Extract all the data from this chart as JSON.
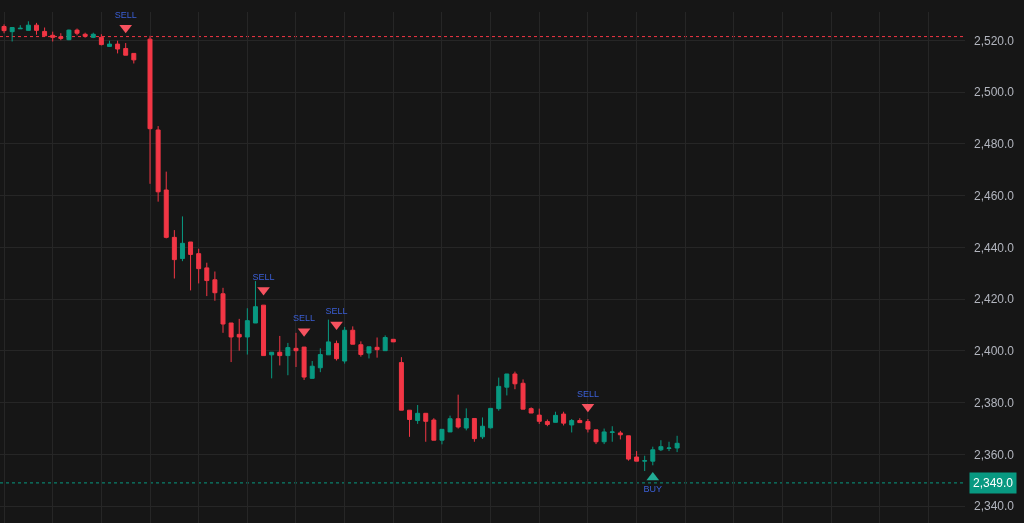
{
  "chart_data": {
    "type": "candlestick",
    "categories": [
      null,
      null,
      null,
      null,
      null,
      null,
      null,
      null,
      null,
      null,
      null,
      null,
      null,
      null,
      null,
      null,
      null,
      null,
      null,
      null,
      null,
      null,
      null,
      null,
      null,
      null,
      null,
      null,
      null,
      null,
      null,
      null,
      null,
      null,
      null,
      null,
      null,
      null,
      null,
      null,
      null,
      null,
      null,
      null,
      null,
      null,
      null,
      null,
      null,
      null,
      null,
      null,
      null,
      null,
      null,
      null,
      null,
      null,
      null,
      null,
      null,
      null,
      null,
      null,
      null,
      null,
      null,
      null,
      null,
      null,
      null,
      null,
      null,
      null,
      null,
      null,
      null,
      null,
      null,
      null,
      null,
      null,
      null,
      null,
      null,
      null,
      null,
      null,
      null,
      null,
      null,
      null,
      null,
      null,
      null,
      null,
      null,
      null,
      null,
      null,
      null,
      null,
      null,
      null,
      null,
      null,
      null,
      null,
      null,
      null,
      null,
      null,
      null,
      null,
      null,
      null,
      null,
      null,
      null
    ],
    "ohlc": [
      [
        2525.4,
        2526.2,
        2522.8,
        2523.8
      ],
      [
        2523.4,
        2525.0,
        2519.6,
        2525.0
      ],
      [
        2524.5,
        2525.9,
        2524.5,
        2524.7
      ],
      [
        2523.9,
        2527.4,
        2523.9,
        2525.9
      ],
      [
        2525.9,
        2526.8,
        2522.2,
        2523.9
      ],
      [
        2523.5,
        2525.0,
        2521.4,
        2521.8
      ],
      [
        2522.0,
        2523.4,
        2519.6,
        2521.2
      ],
      [
        2521.4,
        2522.8,
        2520.1,
        2520.8
      ],
      [
        2520.3,
        2524.2,
        2520.1,
        2524.0
      ],
      [
        2524.0,
        2524.6,
        2522.0,
        2522.8
      ],
      [
        2522.4,
        2523.0,
        2521.1,
        2521.6
      ],
      [
        2521.2,
        2523.0,
        2520.9,
        2522.4
      ],
      [
        2521.2,
        2522.4,
        2518.1,
        2518.4
      ],
      [
        2517.7,
        2519.9,
        2517.7,
        2518.6
      ],
      [
        2518.6,
        2519.9,
        2515.0,
        2516.7
      ],
      [
        2516.9,
        2519.0,
        2514.3,
        2514.3
      ],
      [
        2515.0,
        2515.0,
        2511.1,
        2512.5
      ],
      null,
      [
        2520.5,
        2521.8,
        2464.6,
        2485.9
      ],
      [
        2485.4,
        2486.9,
        2457.7,
        2461.5
      ],
      [
        2462.2,
        2469.3,
        2443.5,
        2443.9
      ],
      [
        2443.9,
        2446.7,
        2428.0,
        2435.3
      ],
      [
        2435.7,
        2452.0,
        2434.7,
        2441.6
      ],
      [
        2442.1,
        2442.1,
        2423.4,
        2437.3
      ],
      [
        2437.6,
        2439.5,
        2426.1,
        2431.8
      ],
      [
        2432.1,
        2434.1,
        2421.2,
        2427.2
      ],
      [
        2427.5,
        2430.7,
        2419.4,
        2422.5
      ],
      [
        2422.1,
        2424.4,
        2407.0,
        2410.4
      ],
      [
        2410.8,
        2410.8,
        2395.7,
        2405.4
      ],
      [
        2406.4,
        2412.4,
        2400.1,
        2405.4
      ],
      [
        2405.4,
        2416.5,
        2398.6,
        2411.7
      ],
      [
        2410.8,
        2427.0,
        2410.8,
        2417.1
      ],
      [
        2417.7,
        2417.7,
        2398.2,
        2398.2
      ],
      [
        2398.5,
        2399.5,
        2389.4,
        2399.5
      ],
      [
        2399.5,
        2405.8,
        2394.4,
        2398.2
      ],
      [
        2398.2,
        2403.1,
        2390.6,
        2401.3
      ],
      [
        2401.0,
        2407.0,
        2393.8,
        2400.1
      ],
      [
        2401.5,
        2401.5,
        2388.8,
        2389.9
      ],
      [
        2389.4,
        2396.1,
        2389.4,
        2394.1
      ],
      [
        2393.5,
        2401.0,
        2391.8,
        2398.6
      ],
      [
        2398.5,
        2412.1,
        2398.5,
        2403.5
      ],
      [
        2402.9,
        2404.0,
        2396.3,
        2397.0
      ],
      [
        2396.1,
        2409.3,
        2395.1,
        2408.0
      ],
      [
        2408.0,
        2409.5,
        2402.6,
        2402.6
      ],
      [
        2402.4,
        2403.7,
        2397.8,
        2398.6
      ],
      [
        2399.2,
        2401.6,
        2397.1,
        2401.6
      ],
      [
        2401.4,
        2405.2,
        2397.4,
        2400.5
      ],
      [
        2400.1,
        2406.0,
        2400.1,
        2405.2
      ],
      [
        2404.5,
        2404.5,
        2403.5,
        2403.5
      ],
      [
        2395.5,
        2397.6,
        2377.1,
        2377.1
      ],
      [
        2377.1,
        2377.1,
        2366.8,
        2373.5
      ],
      [
        2373.1,
        2379.1,
        2371.8,
        2375.9
      ],
      [
        2375.9,
        2375.9,
        2364.9,
        2372.8
      ],
      [
        2373.3,
        2374.0,
        2365.5,
        2365.5
      ],
      [
        2365.5,
        2369.7,
        2363.9,
        2369.7
      ],
      [
        2368.7,
        2375.0,
        2368.7,
        2373.8
      ],
      [
        2373.8,
        2383.1,
        2370.0,
        2370.6
      ],
      [
        2370.2,
        2377.8,
        2369.3,
        2373.9
      ],
      [
        2373.9,
        2373.9,
        2364.9,
        2366.1
      ],
      [
        2366.8,
        2374.3,
        2366.0,
        2370.9
      ],
      [
        2370.3,
        2377.8,
        2370.0,
        2377.8
      ],
      [
        2377.7,
        2389.7,
        2376.9,
        2386.3
      ],
      [
        2386.0,
        2391.1,
        2382.8,
        2391.1
      ],
      [
        2391.1,
        2392.0,
        2385.2,
        2387.3
      ],
      [
        2387.5,
        2389.0,
        2377.5,
        2377.5
      ],
      [
        2377.7,
        2378.2,
        2376.0,
        2376.0
      ],
      [
        2375.2,
        2377.7,
        2371.8,
        2372.8
      ],
      [
        2372.7,
        2373.5,
        2370.9,
        2371.6
      ],
      [
        2372.4,
        2376.5,
        2372.4,
        2375.1
      ],
      [
        2375.6,
        2376.5,
        2371.2,
        2372.1
      ],
      [
        2371.4,
        2373.7,
        2368.5,
        2373.1
      ],
      [
        2373.1,
        2374.0,
        2372.3,
        2372.3
      ],
      [
        2372.7,
        2373.7,
        2368.5,
        2369.8
      ],
      [
        2369.5,
        2369.5,
        2364.0,
        2364.9
      ],
      [
        2364.9,
        2370.0,
        2364.0,
        2368.7
      ],
      [
        2368.5,
        2370.9,
        2364.9,
        2368.7
      ],
      [
        2368.3,
        2369.1,
        2365.8,
        2367.6
      ],
      [
        2367.2,
        2367.2,
        2357.6,
        2358.2
      ],
      [
        2359.0,
        2361.3,
        2357.4,
        2357.4
      ],
      [
        2357.4,
        2359.5,
        2353.6,
        2357.6
      ],
      [
        2357.4,
        2363.0,
        2355.8,
        2361.8
      ],
      [
        2361.8,
        2365.5,
        2361.3,
        2363.0
      ],
      [
        2362.3,
        2364.9,
        2361.3,
        2362.5
      ],
      [
        2362.5,
        2367.2,
        2360.9,
        2364.3
      ],
      null,
      null,
      null,
      null,
      null,
      null,
      null,
      null,
      null,
      null,
      null,
      null,
      null,
      null,
      null,
      null,
      null,
      null,
      null,
      null,
      null,
      null,
      null,
      null,
      null,
      null,
      null,
      null,
      null,
      null,
      null,
      null,
      null,
      null,
      null
    ],
    "colors": [
      "#f23645",
      "#089981",
      "#089981",
      "#089981",
      "#f23645",
      "#f23645",
      "#f23645",
      "#f23645",
      "#089981",
      "#f23645",
      "#f23645",
      "#089981",
      "#f23645",
      "#089981",
      "#f23645",
      "#f23645",
      "#f23645",
      null,
      "#f23645",
      "#f23645",
      "#f23645",
      "#f23645",
      "#089981",
      "#f23645",
      "#f23645",
      "#f23645",
      "#f23645",
      "#f23645",
      "#f23645",
      "#f23645",
      "#089981",
      "#089981",
      "#f23645",
      "#089981",
      "#f23645",
      "#089981",
      "#f23645",
      "#f23645",
      "#089981",
      "#089981",
      "#089981",
      "#f23645",
      "#089981",
      "#f23645",
      "#f23645",
      "#089981",
      "#f23645",
      "#089981",
      "#f23645",
      "#f23645",
      "#f23645",
      "#089981",
      "#f23645",
      "#f23645",
      "#089981",
      "#089981",
      "#f23645",
      "#089981",
      "#f23645",
      "#089981",
      "#089981",
      "#089981",
      "#089981",
      "#f23645",
      "#f23645",
      "#f23645",
      "#f23645",
      "#f23645",
      "#089981",
      "#f23645",
      "#089981",
      "#f23645",
      "#f23645",
      "#f23645",
      "#089981",
      "#089981",
      "#f23645",
      "#f23645",
      "#f23645",
      "#089981",
      "#089981",
      "#089981",
      "#089981",
      "#089981",
      null,
      null,
      null,
      null,
      null,
      null,
      null,
      null,
      null,
      null,
      null,
      null,
      null,
      null,
      null,
      null,
      null,
      null,
      null,
      null,
      null,
      null,
      null,
      null,
      null,
      null,
      null,
      null,
      null,
      null,
      null,
      null,
      null,
      null,
      null
    ],
    "series": [
      {
        "type": "scatter",
        "marker": "triangle",
        "color": "#f7525f",
        "values": [
          null,
          null,
          null,
          null,
          null,
          null,
          null,
          null,
          null,
          null,
          null,
          null,
          null,
          null,
          null,
          2524.9,
          null,
          null,
          null,
          null,
          null,
          null,
          null,
          null,
          null,
          null,
          null,
          null,
          null,
          null,
          null,
          null,
          2423.6,
          null,
          null,
          null,
          null,
          2407.6,
          null,
          null,
          null,
          2410.2,
          null,
          null,
          null,
          null,
          null,
          null,
          null,
          null,
          null,
          null,
          null,
          null,
          null,
          null,
          null,
          null,
          null,
          null,
          null,
          null,
          null,
          null,
          null,
          null,
          null,
          null,
          null,
          null,
          null,
          null,
          2378.4,
          null,
          null,
          null,
          null,
          null,
          null,
          null,
          null,
          null,
          null,
          null,
          null,
          null,
          null,
          null,
          null,
          null,
          null,
          null,
          null,
          null,
          null,
          null,
          null,
          null,
          null,
          null,
          null,
          null,
          null,
          null,
          null,
          null,
          null,
          null,
          null,
          null,
          null,
          null,
          null,
          null,
          null,
          null,
          null,
          null,
          null
        ],
        "value_labels": [
          null,
          null,
          null,
          null,
          null,
          null,
          null,
          null,
          null,
          null,
          null,
          null,
          null,
          null,
          null,
          "SELL",
          null,
          null,
          null,
          null,
          null,
          null,
          null,
          null,
          null,
          null,
          null,
          null,
          null,
          null,
          null,
          null,
          "SELL",
          null,
          null,
          null,
          null,
          "SELL",
          null,
          null,
          null,
          "SELL",
          null,
          null,
          null,
          null,
          null,
          null,
          null,
          null,
          null,
          null,
          null,
          null,
          null,
          null,
          null,
          null,
          null,
          null,
          null,
          null,
          null,
          null,
          null,
          null,
          null,
          null,
          null,
          null,
          null,
          null,
          "SELL",
          null,
          null,
          null,
          null,
          null,
          null,
          null,
          null,
          null,
          null,
          null,
          null,
          null,
          null,
          null,
          null,
          null,
          null,
          null,
          null,
          null,
          null,
          null,
          null,
          null,
          null,
          null,
          null,
          null,
          null,
          null,
          null,
          null,
          null,
          null,
          null,
          null,
          null,
          null,
          null,
          null,
          null,
          null,
          null,
          null,
          null
        ]
      },
      {
        "type": "scatter",
        "marker": "triangle",
        "color": "#22ab94",
        "values": [
          null,
          null,
          null,
          null,
          null,
          null,
          null,
          null,
          null,
          null,
          null,
          null,
          null,
          null,
          null,
          null,
          null,
          null,
          null,
          null,
          null,
          null,
          null,
          null,
          null,
          null,
          null,
          null,
          null,
          null,
          null,
          null,
          null,
          null,
          null,
          null,
          null,
          null,
          null,
          null,
          null,
          null,
          null,
          null,
          null,
          null,
          null,
          null,
          null,
          null,
          null,
          null,
          null,
          null,
          null,
          null,
          null,
          null,
          null,
          null,
          null,
          null,
          null,
          null,
          null,
          null,
          null,
          null,
          null,
          null,
          null,
          null,
          null,
          null,
          null,
          null,
          null,
          null,
          null,
          null,
          2351.1,
          null,
          null,
          null,
          null,
          null,
          null,
          null,
          null,
          null,
          null,
          null,
          null,
          null,
          null,
          null,
          null,
          null,
          null,
          null,
          null,
          null,
          null,
          null,
          null,
          null,
          null,
          null,
          null,
          null,
          null,
          null,
          null,
          null,
          null,
          null,
          null,
          null,
          null
        ],
        "value_labels": [
          null,
          null,
          null,
          null,
          null,
          null,
          null,
          null,
          null,
          null,
          null,
          null,
          null,
          null,
          null,
          null,
          null,
          null,
          null,
          null,
          null,
          null,
          null,
          null,
          null,
          null,
          null,
          null,
          null,
          null,
          null,
          null,
          null,
          null,
          null,
          null,
          null,
          null,
          null,
          null,
          null,
          null,
          null,
          null,
          null,
          null,
          null,
          null,
          null,
          null,
          null,
          null,
          null,
          null,
          null,
          null,
          null,
          null,
          null,
          null,
          null,
          null,
          null,
          null,
          null,
          null,
          null,
          null,
          null,
          null,
          null,
          null,
          null,
          null,
          null,
          null,
          null,
          null,
          null,
          null,
          "BUY",
          null,
          null,
          null,
          null,
          null,
          null,
          null,
          null,
          null,
          null,
          null,
          null,
          null,
          null,
          null,
          null,
          null,
          null,
          null,
          null,
          null,
          null,
          null,
          null,
          null,
          null,
          null,
          null,
          null,
          null,
          null,
          null,
          null,
          null,
          null,
          null,
          null,
          null
        ]
      }
    ],
    "ylim": [
      2333.5,
      2531.0
    ],
    "yticks": [
      {
        "value": 2340,
        "label": "2,340.0"
      },
      {
        "value": 2360,
        "label": "2,360.0"
      },
      {
        "value": 2380,
        "label": "2,380.0"
      },
      {
        "value": 2400,
        "label": "2,400.0"
      },
      {
        "value": 2420,
        "label": "2,420.0"
      },
      {
        "value": 2440,
        "label": "2,440.0"
      },
      {
        "value": 2460,
        "label": "2,460.0"
      },
      {
        "value": 2480,
        "label": "2,480.0"
      },
      {
        "value": 2500,
        "label": "2,500.0"
      },
      {
        "value": 2520,
        "label": "2,520.0"
      }
    ],
    "ref_lines": [
      {
        "axis": "y",
        "value": 2521.5,
        "color": "#f23645",
        "line_style": "dotted"
      },
      {
        "axis": "y",
        "value": 2349.0,
        "label": "2,349.0",
        "color": "#089981",
        "line_style": "dotted"
      }
    ],
    "grid": true,
    "tick_labels": "y"
  }
}
